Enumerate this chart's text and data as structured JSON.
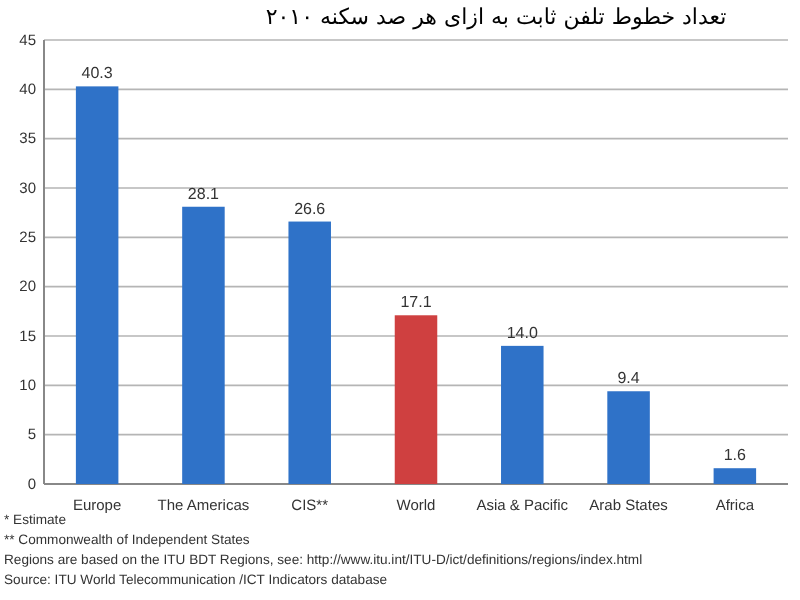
{
  "chart_data": {
    "type": "bar",
    "title": "تعداد خطوط تلفن ثابت به ازای هر صد سکنه ۲۰۱۰",
    "categories": [
      "Europe",
      "The Americas",
      "CIS**",
      "World",
      "Asia & Pacific",
      "Arab States",
      "Africa"
    ],
    "values": [
      40.3,
      28.1,
      26.6,
      17.1,
      14.0,
      9.4,
      1.6
    ],
    "value_labels": [
      "40.3",
      "28.1",
      "26.6",
      "17.1",
      "14.0",
      "9.4",
      "1.6"
    ],
    "colors": [
      "#2f72c8",
      "#2f72c8",
      "#2f72c8",
      "#cf4040",
      "#2f72c8",
      "#2f72c8",
      "#2f72c8"
    ],
    "ylim": [
      0,
      45
    ],
    "yticks": [
      0,
      5,
      10,
      15,
      20,
      25,
      30,
      35,
      40,
      45
    ],
    "grid": "y",
    "annotations": [
      "* Estimate",
      "** Commonwealth of Independent States",
      "Regions are based on the ITU BDT Regions, see: http://www.itu.int/ITU-D/ict/definitions/regions/index.html",
      "Source:  ITU World Telecommunication /ICT Indicators database"
    ]
  }
}
